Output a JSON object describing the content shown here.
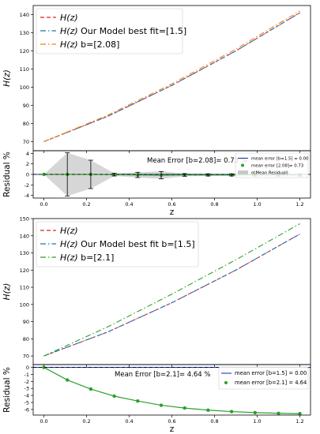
{
  "chart_data": [
    {
      "type": "line",
      "panel": "top-main",
      "ylabel": "H(z)",
      "ylim": [
        65,
        145
      ],
      "yticks": [
        70,
        80,
        90,
        100,
        110,
        120,
        130,
        140
      ],
      "xlim": [
        -0.05,
        1.25
      ],
      "grid": false,
      "legend": {
        "placement": "top-left",
        "entries": [
          "$H(z)$",
          "$H(z)$ Our Model best fit=[1.5]",
          "$H(z)$ b=[2.08]"
        ]
      },
      "series": [
        {
          "name": "$H(z)$",
          "color": "#d62728",
          "dash": "dashed",
          "x": [
            0.0,
            0.3,
            0.6,
            0.9,
            1.2
          ],
          "y": [
            70,
            84,
            101,
            120,
            141
          ]
        },
        {
          "name": "$H(z)$ Our Model best fit=[1.5]",
          "color": "#1f77b4",
          "dash": "dashdot",
          "x": [
            0.0,
            0.3,
            0.6,
            0.9,
            1.2
          ],
          "y": [
            70,
            84,
            101,
            120,
            141
          ]
        },
        {
          "name": "$H(z)$ b=[2.08]",
          "color": "#ff7f0e",
          "dash": "dashdot",
          "x": [
            0.0,
            0.3,
            0.6,
            0.9,
            1.2
          ],
          "y": [
            70,
            84.6,
            101.8,
            121,
            142
          ]
        }
      ]
    },
    {
      "type": "line",
      "panel": "top-residual",
      "xlabel": "z",
      "ylabel": "Residual %",
      "ylim": [
        -4.5,
        4.5
      ],
      "yticks": [
        -4,
        -2,
        0,
        2,
        4
      ],
      "xlim": [
        -0.05,
        1.25
      ],
      "xticks": [
        0.0,
        0.2,
        0.4,
        0.6,
        0.8,
        1.0,
        1.2
      ],
      "annotation": "Mean Error [b=2.08]= 0.73 %",
      "legend": {
        "placement": "top-right",
        "entries": [
          "mean error [b=1.5] = 0.00",
          "mean error [2.08]= 0.73",
          "σ(Mean Residual)"
        ]
      },
      "series": [
        {
          "name": "mean error [b=1.5] = 0.00",
          "color": "#1f3a99",
          "dash": "solid",
          "x": [
            -0.05,
            1.25
          ],
          "y": [
            0,
            0
          ]
        },
        {
          "name": "mean error [2.08]= 0.73",
          "color": "#2ca02c",
          "marker": "circle",
          "x": [
            0.0,
            0.11,
            0.22,
            0.33,
            0.44,
            0.55,
            0.66,
            0.77,
            0.88,
            0.99,
            1.1,
            1.2
          ],
          "y": [
            0,
            0,
            0,
            -0.05,
            -0.1,
            -0.15,
            -0.1,
            -0.1,
            -0.1,
            -0.1,
            -0.1,
            -0.1
          ]
        }
      ],
      "error_bars": {
        "x": [
          0.11,
          0.22,
          0.33,
          0.44,
          0.55,
          0.66,
          0.77,
          0.88,
          0.99,
          1.1,
          1.2
        ],
        "y": [
          0,
          0,
          -0.05,
          -0.1,
          -0.15,
          -0.1,
          -0.1,
          -0.1,
          -0.1,
          -0.1,
          -0.1
        ],
        "err": [
          4.1,
          2.7,
          0.25,
          0.5,
          0.7,
          0.25,
          0.2,
          0.2,
          0.2,
          0.2,
          0.2
        ]
      },
      "sigma_band": {
        "x": [
          0.0,
          0.11,
          0.22,
          0.33,
          0.44,
          0.55,
          0.66,
          0.77,
          0.88,
          0.99,
          1.1,
          1.2
        ],
        "lower": [
          0,
          -4.1,
          -2.7,
          -0.3,
          -0.6,
          -0.85,
          -0.35,
          -0.3,
          -0.3,
          -0.3,
          -0.3,
          -0.3
        ],
        "upper": [
          0,
          4.1,
          2.7,
          0.2,
          0.4,
          0.6,
          0.15,
          0.1,
          0.1,
          0.1,
          0.1,
          0.1
        ]
      },
      "reference_line": {
        "y": 0,
        "color": "#000000",
        "dash": "dashed"
      }
    },
    {
      "type": "line",
      "panel": "bottom-main",
      "ylabel": "H(z)",
      "ylim": [
        65,
        150
      ],
      "yticks": [
        70,
        80,
        90,
        100,
        110,
        120,
        130,
        140,
        150
      ],
      "xlim": [
        -0.05,
        1.25
      ],
      "grid": false,
      "legend": {
        "placement": "top-left",
        "entries": [
          "$H(z)$",
          "$H(z)$ Our Model best fit b=[1.5]",
          "$H(z)$ b=[2.1]"
        ]
      },
      "series": [
        {
          "name": "$H(z)$",
          "color": "#d62728",
          "dash": "dashed",
          "x": [
            0.0,
            0.3,
            0.6,
            0.9,
            1.2
          ],
          "y": [
            70,
            84,
            101,
            120,
            141
          ]
        },
        {
          "name": "$H(z)$ Our Model best fit b=[1.5]",
          "color": "#1f77b4",
          "dash": "dashdot",
          "x": [
            0.0,
            0.3,
            0.6,
            0.9,
            1.2
          ],
          "y": [
            70,
            84,
            101,
            120,
            141
          ]
        },
        {
          "name": "$H(z)$ b=[2.1]",
          "color": "#2ca02c",
          "dash": "dashdot",
          "x": [
            0.0,
            0.3,
            0.6,
            0.9,
            1.2
          ],
          "y": [
            70,
            87,
            106,
            126,
            147
          ]
        }
      ]
    },
    {
      "type": "line",
      "panel": "bottom-residual",
      "xlabel": "z",
      "ylabel": "Residual %",
      "ylim": [
        -6.8,
        0.4
      ],
      "yticks": [
        -6,
        -5,
        -4,
        -3,
        -2,
        -1,
        0
      ],
      "xlim": [
        -0.05,
        1.25
      ],
      "xticks": [
        0.0,
        0.2,
        0.4,
        0.6,
        0.8,
        1.0,
        1.2
      ],
      "annotation": "Mean Error [b=2.1]= 4.64 %",
      "legend": {
        "placement": "top-right",
        "entries": [
          "mean error [b=1.5] = 0.00",
          "mean error [b=2.1] = 4.64"
        ]
      },
      "series": [
        {
          "name": "mean error [b=1.5] = 0.00",
          "color": "#1f3acc",
          "dash": "solid",
          "x": [
            -0.05,
            1.25
          ],
          "y": [
            0,
            0
          ]
        },
        {
          "name": "mean error [b=2.1] = 4.64",
          "color": "#2ca02c",
          "marker": "circle",
          "x": [
            0.0,
            0.11,
            0.22,
            0.33,
            0.44,
            0.55,
            0.66,
            0.77,
            0.88,
            0.99,
            1.1,
            1.2
          ],
          "y": [
            0,
            -1.8,
            -3.1,
            -4.1,
            -4.8,
            -5.4,
            -5.8,
            -6.1,
            -6.3,
            -6.45,
            -6.55,
            -6.6
          ]
        }
      ],
      "reference_line": {
        "y": 0,
        "color": "#000000",
        "dash": "dashed"
      }
    }
  ]
}
